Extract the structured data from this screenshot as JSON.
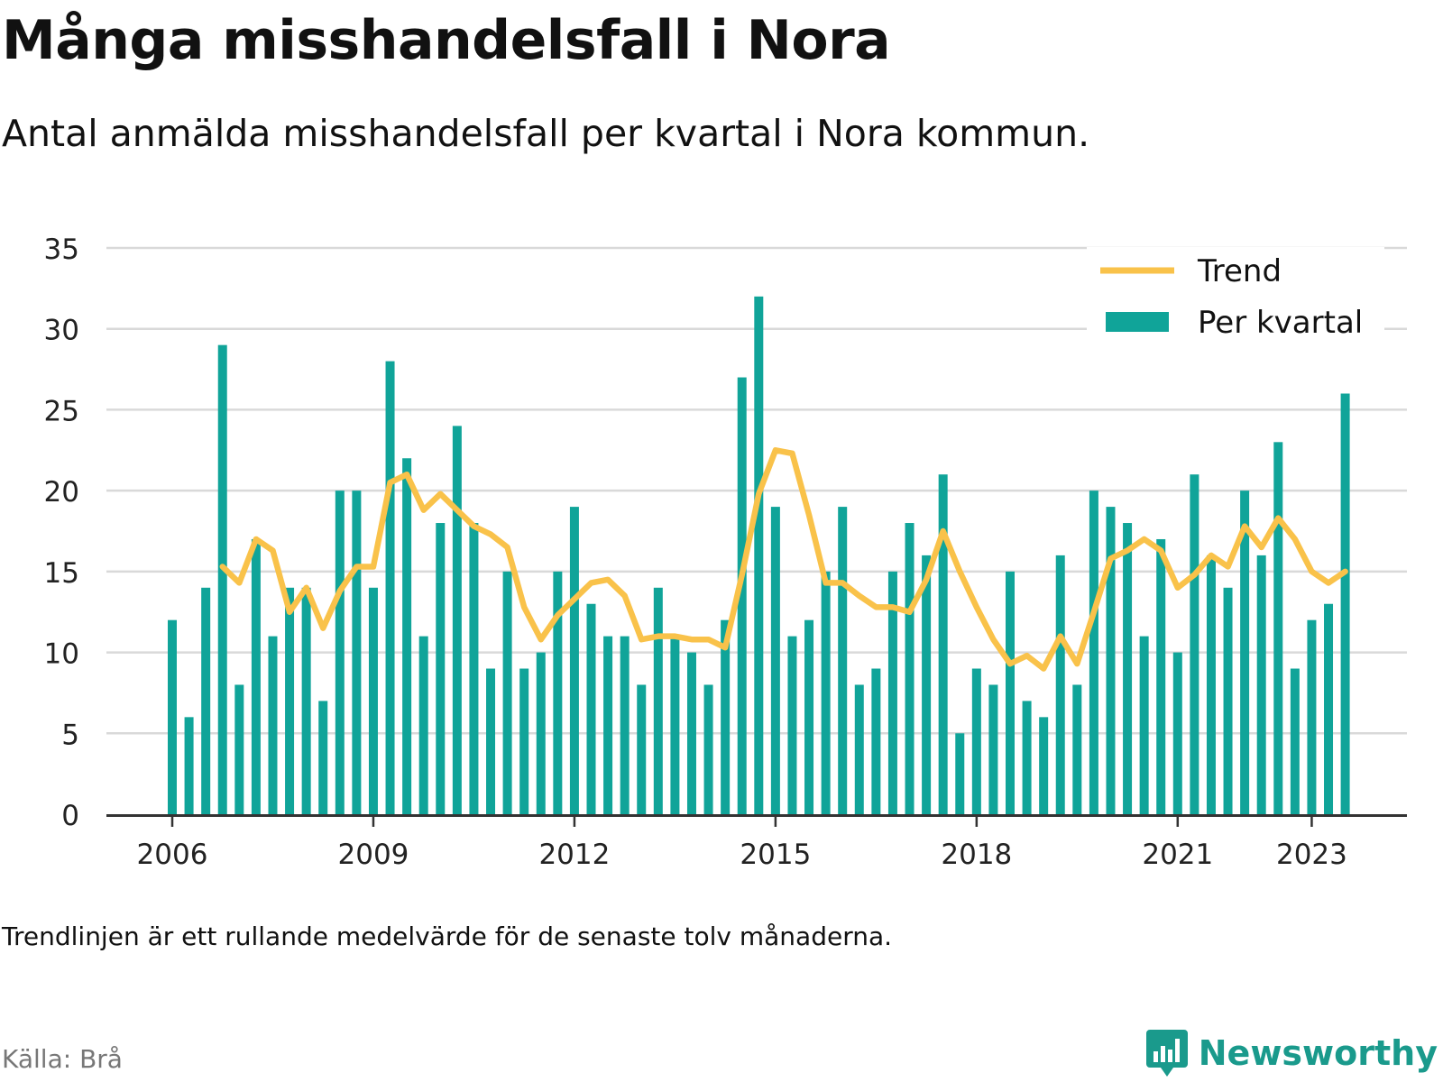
{
  "title": "Många misshandelsfall i Nora",
  "subtitle": "Antal anmälda misshandelsfall per kvartal i Nora kommun.",
  "note": "Trendlinjen är ett rullande medelvärde för de senaste tolv månaderna.",
  "source": "Källa: Brå",
  "brand": {
    "name": "Newsworthy",
    "icon": "newsworthy-logo-icon"
  },
  "colors": {
    "bar": "#10a499",
    "trend": "#f9c24a",
    "grid": "#d9d9d9",
    "axis": "#333333"
  },
  "chart_data": {
    "type": "bar",
    "categories": [
      "2006 Q1",
      "2006 Q2",
      "2006 Q3",
      "2006 Q4",
      "2007 Q1",
      "2007 Q2",
      "2007 Q3",
      "2007 Q4",
      "2008 Q1",
      "2008 Q2",
      "2008 Q3",
      "2008 Q4",
      "2009 Q1",
      "2009 Q2",
      "2009 Q3",
      "2009 Q4",
      "2010 Q1",
      "2010 Q2",
      "2010 Q3",
      "2010 Q4",
      "2011 Q1",
      "2011 Q2",
      "2011 Q3",
      "2011 Q4",
      "2012 Q1",
      "2012 Q2",
      "2012 Q3",
      "2012 Q4",
      "2013 Q1",
      "2013 Q2",
      "2013 Q3",
      "2013 Q4",
      "2014 Q1",
      "2014 Q2",
      "2014 Q3",
      "2014 Q4",
      "2015 Q1",
      "2015 Q2",
      "2015 Q3",
      "2015 Q4",
      "2016 Q1",
      "2016 Q2",
      "2016 Q3",
      "2016 Q4",
      "2017 Q1",
      "2017 Q2",
      "2017 Q3",
      "2017 Q4",
      "2018 Q1",
      "2018 Q2",
      "2018 Q3",
      "2018 Q4",
      "2019 Q1",
      "2019 Q2",
      "2019 Q3",
      "2019 Q4",
      "2020 Q1",
      "2020 Q2",
      "2020 Q3",
      "2020 Q4",
      "2021 Q1",
      "2021 Q2",
      "2021 Q3",
      "2021 Q4",
      "2022 Q1",
      "2022 Q2",
      "2022 Q3",
      "2022 Q4",
      "2023 Q1",
      "2023 Q2",
      "2023 Q3"
    ],
    "series": [
      {
        "name": "Per kvartal",
        "type": "bar",
        "values": [
          12,
          6,
          14,
          29,
          8,
          17,
          11,
          14,
          14,
          7,
          20,
          20,
          14,
          28,
          22,
          11,
          18,
          24,
          18,
          9,
          15,
          9,
          10,
          15,
          19,
          13,
          11,
          11,
          8,
          14,
          11,
          10,
          8,
          12,
          27,
          32,
          19,
          11,
          12,
          15,
          19,
          8,
          9,
          15,
          18,
          16,
          21,
          5,
          9,
          8,
          15,
          7,
          6,
          16,
          8,
          20,
          19,
          18,
          11,
          17,
          10,
          21,
          16,
          14,
          20,
          16,
          23,
          9,
          12,
          13,
          26
        ]
      },
      {
        "name": "Trend",
        "type": "line",
        "values": [
          null,
          null,
          null,
          15.3,
          14.3,
          17.0,
          16.3,
          12.5,
          14.0,
          11.5,
          13.8,
          15.3,
          15.3,
          20.5,
          21.0,
          18.8,
          19.8,
          18.8,
          17.8,
          17.3,
          16.5,
          12.8,
          10.8,
          12.3,
          13.3,
          14.3,
          14.5,
          13.5,
          10.8,
          11.0,
          11.0,
          10.8,
          10.8,
          10.3,
          14.8,
          19.8,
          22.5,
          22.3,
          18.5,
          14.3,
          14.3,
          13.5,
          12.8,
          12.8,
          12.5,
          14.5,
          17.5,
          15.0,
          12.8,
          10.8,
          9.3,
          9.8,
          9.0,
          11.0,
          9.3,
          12.5,
          15.8,
          16.3,
          17.0,
          16.3,
          14.0,
          14.8,
          16.0,
          15.3,
          17.8,
          16.5,
          18.3,
          17.0,
          15.0,
          14.3,
          15.0
        ]
      }
    ],
    "x_tick_labels": [
      {
        "category": "2006 Q1",
        "label": "2006"
      },
      {
        "category": "2009 Q1",
        "label": "2009"
      },
      {
        "category": "2012 Q1",
        "label": "2012"
      },
      {
        "category": "2015 Q1",
        "label": "2015"
      },
      {
        "category": "2018 Q1",
        "label": "2018"
      },
      {
        "category": "2021 Q1",
        "label": "2021"
      },
      {
        "category": "2023 Q1",
        "label": "2023"
      }
    ],
    "y_ticks": [
      0,
      5,
      10,
      15,
      20,
      25,
      30,
      35
    ],
    "ylim": [
      0,
      35
    ],
    "grid": true,
    "legend": {
      "position": "top-right",
      "entries": [
        {
          "label": "Trend",
          "symbol": "line"
        },
        {
          "label": "Per kvartal",
          "symbol": "bar"
        }
      ]
    }
  }
}
